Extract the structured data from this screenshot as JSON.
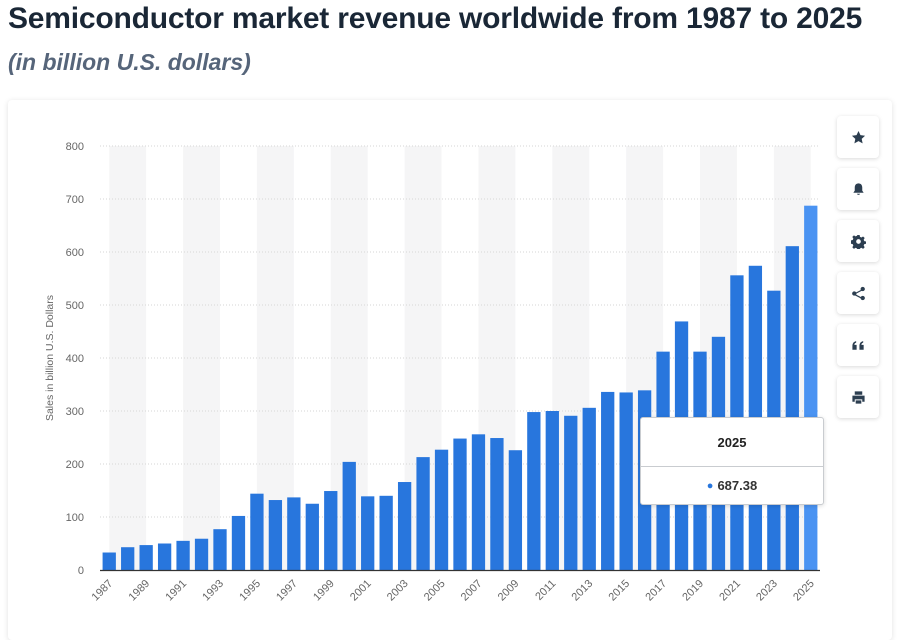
{
  "header": {
    "title": "Semiconductor market revenue worldwide from 1987 to 2025",
    "subtitle": "(in billion U.S. dollars)"
  },
  "toolbar": {
    "buttons": [
      {
        "icon": "star-icon"
      },
      {
        "icon": "bell-icon"
      },
      {
        "icon": "gear-icon"
      },
      {
        "icon": "share-icon"
      },
      {
        "icon": "quote-icon"
      },
      {
        "icon": "print-icon"
      }
    ]
  },
  "tooltip": {
    "year": "2025",
    "value": "687.38"
  },
  "colors": {
    "bar": "#2876dd",
    "bar_highlight": "#4a93f2",
    "band": "#f5f5f6",
    "grid": "#d6d6d6",
    "axis_text": "#666666"
  },
  "chart_data": {
    "type": "bar",
    "ylabel": "Sales in billion U.S. Dollars",
    "xlabel": "",
    "ylim": [
      0,
      800
    ],
    "yticks": [
      0,
      100,
      200,
      300,
      400,
      500,
      600,
      700,
      800
    ],
    "grid": true,
    "categories": [
      "1987",
      "1988",
      "1989",
      "1990",
      "1991",
      "1992",
      "1993",
      "1994",
      "1995",
      "1996",
      "1997",
      "1998",
      "1999",
      "2000",
      "2001",
      "2002",
      "2003",
      "2004",
      "2005",
      "2006",
      "2007",
      "2008",
      "2009",
      "2010",
      "2011",
      "2012",
      "2013",
      "2014",
      "2015",
      "2016",
      "2017",
      "2018",
      "2019",
      "2020",
      "2021",
      "2022",
      "2023",
      "2024",
      "2025"
    ],
    "xtick_labels": [
      "1987",
      "1989",
      "1991",
      "1993",
      "1995",
      "1997",
      "1999",
      "2001",
      "2003",
      "2005",
      "2007",
      "2009",
      "2011",
      "2013",
      "2015",
      "2017",
      "2019",
      "2021",
      "2023",
      "2025"
    ],
    "values": [
      33,
      43,
      47,
      50,
      55,
      59,
      77,
      102,
      144,
      132,
      137,
      125,
      149,
      204,
      139,
      140,
      166,
      213,
      227,
      248,
      256,
      249,
      226,
      298,
      300,
      291,
      306,
      336,
      335,
      339,
      412,
      469,
      412,
      440,
      556,
      574,
      527,
      611,
      687.38
    ],
    "highlight_category": "2025"
  }
}
